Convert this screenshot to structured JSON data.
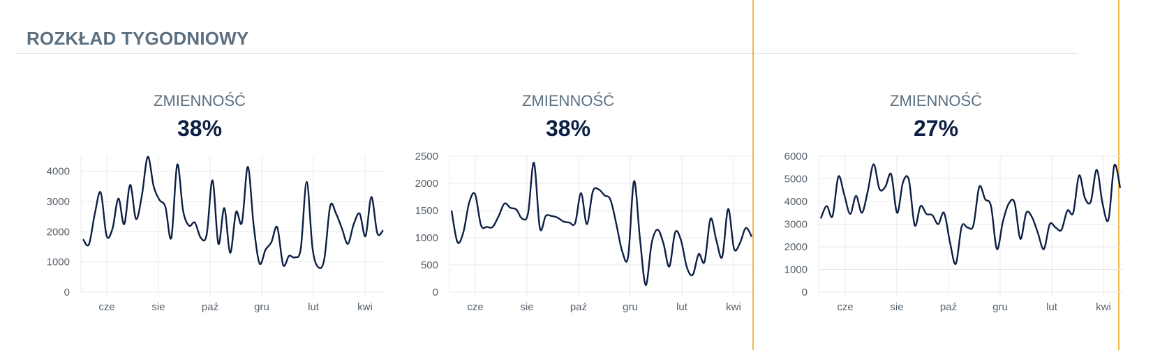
{
  "title": "ROZKŁAD TYGODNIOWY",
  "colors": {
    "line": "#0d1f45",
    "grid": "#e6e9ec",
    "title": "#5a6f80",
    "highlight": "#f0b74a"
  },
  "panels": [
    {
      "label": "ZMIENNOŚĆ",
      "value": "38%"
    },
    {
      "label": "ZMIENNOŚĆ",
      "value": "38%"
    },
    {
      "label": "ZMIENNOŚĆ",
      "value": "27%"
    }
  ],
  "chart_data": [
    {
      "type": "line",
      "x_ticks": [
        "cze",
        "sie",
        "paź",
        "gru",
        "lut",
        "kwi"
      ],
      "y_ticks": [
        0,
        1000,
        2000,
        3000,
        4000
      ],
      "ylim": [
        0,
        4500
      ],
      "grid": true,
      "values": [
        1750,
        1580,
        2600,
        3300,
        1870,
        2100,
        3100,
        2250,
        3550,
        2420,
        3200,
        4480,
        3500,
        3050,
        2820,
        1800,
        4220,
        2700,
        2200,
        2300,
        1800,
        1900,
        3700,
        1600,
        2780,
        1300,
        2650,
        2300,
        4150,
        2200,
        950,
        1400,
        1650,
        2150,
        900,
        1200,
        1150,
        1450,
        3650,
        1450,
        820,
        1100,
        2850,
        2600,
        2100,
        1600,
        2250,
        2600,
        1850,
        3150,
        1950,
        2050
      ]
    },
    {
      "type": "line",
      "x_ticks": [
        "cze",
        "sie",
        "paź",
        "gru",
        "lut",
        "kwi"
      ],
      "y_ticks": [
        0,
        500,
        1000,
        1500,
        2000,
        2500
      ],
      "ylim": [
        0,
        2500
      ],
      "grid": true,
      "values": [
        1500,
        920,
        1100,
        1650,
        1800,
        1230,
        1200,
        1200,
        1400,
        1630,
        1550,
        1520,
        1350,
        1450,
        2380,
        1180,
        1400,
        1400,
        1370,
        1300,
        1280,
        1270,
        1820,
        1250,
        1850,
        1890,
        1780,
        1700,
        1250,
        750,
        650,
        2040,
        1000,
        130,
        900,
        1150,
        900,
        470,
        1100,
        950,
        450,
        320,
        700,
        560,
        1350,
        950,
        650,
        1530,
        800,
        900,
        1180,
        1020
      ]
    },
    {
      "type": "line",
      "x_ticks": [
        "cze",
        "sie",
        "paź",
        "gru",
        "lut",
        "kwi"
      ],
      "y_ticks": [
        0,
        1000,
        2000,
        3000,
        4000,
        5000,
        6000
      ],
      "ylim": [
        0,
        6000
      ],
      "grid": true,
      "values": [
        3250,
        3800,
        3350,
        5100,
        4300,
        3450,
        4250,
        3500,
        4450,
        5650,
        4550,
        4650,
        5200,
        3500,
        4850,
        4950,
        2950,
        3800,
        3450,
        3400,
        3000,
        3500,
        2200,
        1250,
        2900,
        2850,
        2950,
        4650,
        4100,
        3800,
        1900,
        3100,
        3900,
        3950,
        2350,
        3500,
        3300,
        2600,
        1900,
        3000,
        2850,
        2750,
        3600,
        3500,
        5150,
        4150,
        4000,
        5400,
        3900,
        3200,
        5600,
        4600
      ]
    }
  ]
}
